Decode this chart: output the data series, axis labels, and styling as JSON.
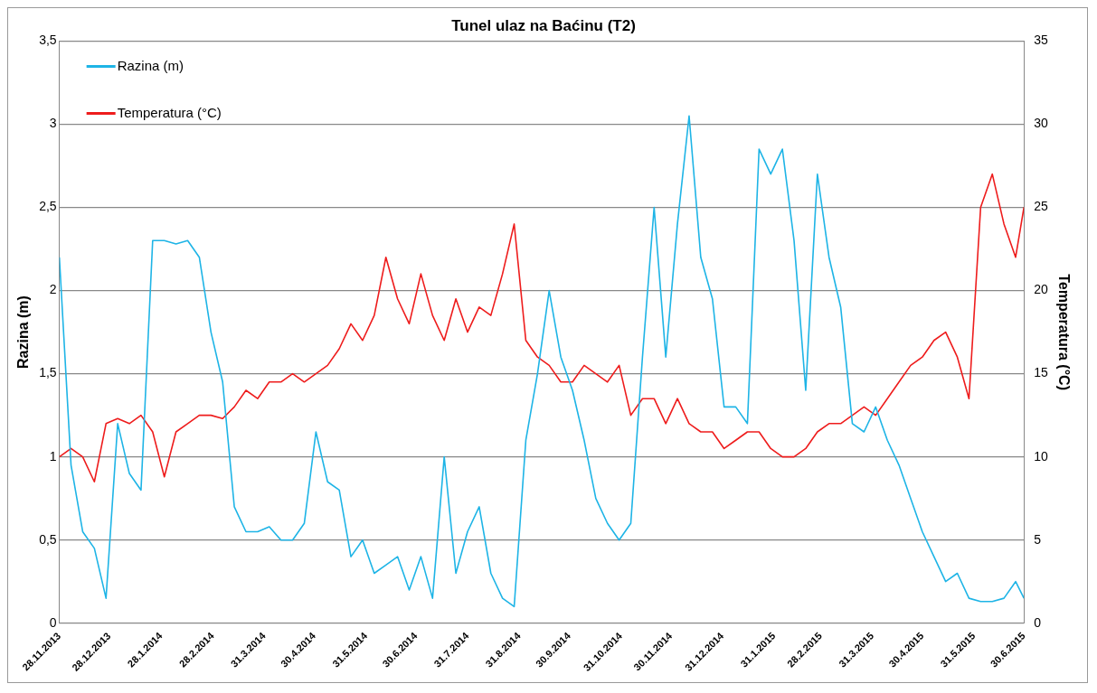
{
  "chart_data": {
    "type": "line",
    "title": "Tunel ulaz na Baćinu (T2)",
    "ylabel": "Razina (m)",
    "y2label": "Temperatura (°C)",
    "x": [
      "2013-11-28",
      "2013-12-05",
      "2013-12-12",
      "2013-12-19",
      "2013-12-26",
      "2014-01-02",
      "2014-01-09",
      "2014-01-16",
      "2014-01-23",
      "2014-01-30",
      "2014-02-06",
      "2014-02-13",
      "2014-02-20",
      "2014-02-27",
      "2014-03-06",
      "2014-03-13",
      "2014-03-20",
      "2014-03-27",
      "2014-04-03",
      "2014-04-10",
      "2014-04-17",
      "2014-04-24",
      "2014-05-01",
      "2014-05-08",
      "2014-05-15",
      "2014-05-22",
      "2014-05-29",
      "2014-06-05",
      "2014-06-12",
      "2014-06-19",
      "2014-06-26",
      "2014-07-03",
      "2014-07-10",
      "2014-07-17",
      "2014-07-24",
      "2014-07-31",
      "2014-08-07",
      "2014-08-14",
      "2014-08-21",
      "2014-08-28",
      "2014-09-04",
      "2014-09-11",
      "2014-09-18",
      "2014-09-25",
      "2014-10-02",
      "2014-10-09",
      "2014-10-16",
      "2014-10-23",
      "2014-10-30",
      "2014-11-06",
      "2014-11-13",
      "2014-11-20",
      "2014-11-27",
      "2014-12-04",
      "2014-12-11",
      "2014-12-18",
      "2014-12-25",
      "2015-01-01",
      "2015-01-08",
      "2015-01-15",
      "2015-01-22",
      "2015-01-29",
      "2015-02-05",
      "2015-02-12",
      "2015-02-19",
      "2015-02-26",
      "2015-03-05",
      "2015-03-12",
      "2015-03-19",
      "2015-03-26",
      "2015-04-02",
      "2015-04-09",
      "2015-04-16",
      "2015-04-23",
      "2015-04-30",
      "2015-05-07",
      "2015-05-14",
      "2015-05-21",
      "2015-05-28",
      "2015-06-04",
      "2015-06-11",
      "2015-06-18",
      "2015-06-25",
      "2015-06-30"
    ],
    "series": [
      {
        "name": "Razina (m)",
        "color": "#1eb4e6",
        "values": [
          2.2,
          0.95,
          0.55,
          0.45,
          0.15,
          1.2,
          0.9,
          0.8,
          2.3,
          2.3,
          2.28,
          2.3,
          2.2,
          1.75,
          1.45,
          0.7,
          0.55,
          0.55,
          0.58,
          0.5,
          0.5,
          0.6,
          1.15,
          0.85,
          0.8,
          0.4,
          0.5,
          0.3,
          0.35,
          0.4,
          0.2,
          0.4,
          0.15,
          1.0,
          0.3,
          0.55,
          0.7,
          0.3,
          0.15,
          0.1,
          1.1,
          1.5,
          2.0,
          1.6,
          1.4,
          1.1,
          0.75,
          0.6,
          0.5,
          0.6,
          1.6,
          2.5,
          1.6,
          2.4,
          3.05,
          2.2,
          1.95,
          1.3,
          1.3,
          1.2,
          2.85,
          2.7,
          2.85,
          2.3,
          1.4,
          2.7,
          2.2,
          1.9,
          1.2,
          1.15,
          1.3,
          1.1,
          0.95,
          0.75,
          0.55,
          0.4,
          0.25,
          0.3,
          0.15,
          0.13,
          0.13,
          0.15,
          0.25,
          0.15
        ]
      },
      {
        "name": "Temperatura (°C)",
        "color": "#ee1c1c",
        "axis": "y2",
        "values": [
          10,
          10.5,
          10,
          8.5,
          12,
          12.3,
          12,
          12.5,
          11.5,
          8.8,
          11.5,
          12,
          12.5,
          12.5,
          12.3,
          13,
          14,
          13.5,
          14.5,
          14.5,
          15,
          14.5,
          15,
          15.5,
          16.5,
          18,
          17,
          18.5,
          22,
          19.5,
          18,
          21,
          18.5,
          17,
          19.5,
          17.5,
          19,
          18.5,
          21,
          24,
          17,
          16,
          15.5,
          14.5,
          14.5,
          15.5,
          15,
          14.5,
          15.5,
          12.5,
          13.5,
          13.5,
          12,
          13.5,
          12,
          11.5,
          11.5,
          10.5,
          11,
          11.5,
          11.5,
          10.5,
          10,
          10,
          10.5,
          11.5,
          12,
          12,
          12.5,
          13,
          12.5,
          13.5,
          14.5,
          15.5,
          16,
          17,
          17.5,
          16,
          13.5,
          25,
          27,
          24,
          22,
          25
        ]
      }
    ],
    "xlim": [
      "2013-11-28",
      "2015-06-30"
    ],
    "xticks": [
      {
        "value": "2013-11-28",
        "label": "28.11.2013"
      },
      {
        "value": "2013-12-28",
        "label": "28.12.2013"
      },
      {
        "value": "2014-01-28",
        "label": "28.1.2014"
      },
      {
        "value": "2014-02-28",
        "label": "28.2.2014"
      },
      {
        "value": "2014-03-31",
        "label": "31.3.2014"
      },
      {
        "value": "2014-04-30",
        "label": "30.4.2014"
      },
      {
        "value": "2014-05-31",
        "label": "31.5.2014"
      },
      {
        "value": "2014-06-30",
        "label": "30.6.2014"
      },
      {
        "value": "2014-07-31",
        "label": "31.7.2014"
      },
      {
        "value": "2014-08-31",
        "label": "31.8.2014"
      },
      {
        "value": "2014-09-30",
        "label": "30.9.2014"
      },
      {
        "value": "2014-10-31",
        "label": "31.10.2014"
      },
      {
        "value": "2014-11-30",
        "label": "30.11.2014"
      },
      {
        "value": "2014-12-31",
        "label": "31.12.2014"
      },
      {
        "value": "2015-01-31",
        "label": "31.1.2015"
      },
      {
        "value": "2015-02-28",
        "label": "28.2.2015"
      },
      {
        "value": "2015-03-31",
        "label": "31.3.2015"
      },
      {
        "value": "2015-04-30",
        "label": "30.4.2015"
      },
      {
        "value": "2015-05-31",
        "label": "31.5.2015"
      },
      {
        "value": "2015-06-30",
        "label": "30.6.2015"
      }
    ],
    "ylim": [
      0,
      3.5
    ],
    "yticks": [
      0,
      {
        "value": 0.5,
        "label": "0,5"
      },
      1,
      {
        "value": 1.5,
        "label": "1,5"
      },
      2,
      {
        "value": 2.5,
        "label": "2,5"
      },
      3,
      {
        "value": 3.5,
        "label": "3,5"
      }
    ],
    "y2lim": [
      0,
      35
    ],
    "y2ticks": [
      0,
      5,
      10,
      15,
      20,
      25,
      30,
      35
    ],
    "grid": "y",
    "legend": "top left",
    "marker": "none",
    "line_style": "solid"
  }
}
